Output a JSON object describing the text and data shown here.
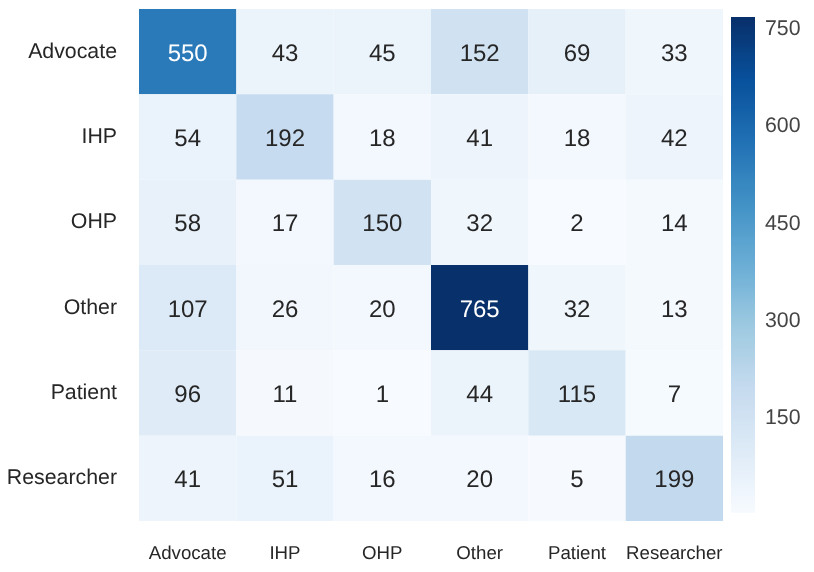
{
  "chart_data": {
    "type": "heatmap",
    "categories": [
      "Advocate",
      "IHP",
      "OHP",
      "Other",
      "Patient",
      "Researcher"
    ],
    "y_categories": [
      "Advocate",
      "IHP",
      "OHP",
      "Other",
      "Patient",
      "Researcher"
    ],
    "cells": [
      [
        550,
        43,
        45,
        152,
        69,
        33
      ],
      [
        54,
        192,
        18,
        41,
        18,
        42
      ],
      [
        58,
        17,
        150,
        32,
        2,
        14
      ],
      [
        107,
        26,
        20,
        765,
        32,
        13
      ],
      [
        96,
        11,
        1,
        44,
        115,
        7
      ],
      [
        41,
        51,
        16,
        20,
        5,
        199
      ]
    ],
    "data_labels": true,
    "clim": [
      1,
      765
    ],
    "cticks": [
      150,
      300,
      450,
      600,
      750
    ],
    "grid": false
  }
}
